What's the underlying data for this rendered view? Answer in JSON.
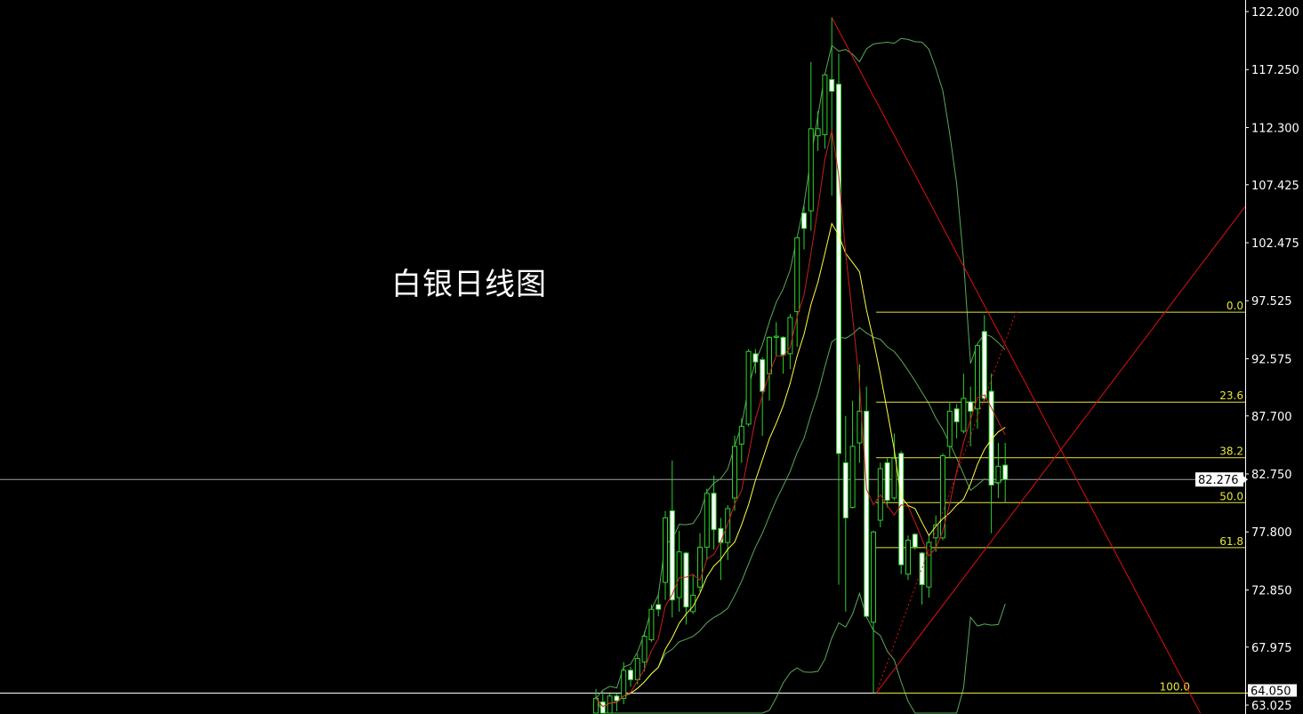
{
  "chart_data": {
    "type": "candlestick",
    "title": "白银日线图",
    "ylim": [
      63.025,
      122.2
    ],
    "y_ticks": [
      "122.200",
      "117.250",
      "112.300",
      "107.425",
      "102.475",
      "97.525",
      "92.575",
      "87.700",
      "82.750",
      "77.800",
      "72.850",
      "67.975",
      "63.025"
    ],
    "grid": false,
    "candles_ohlc": [
      [
        62.2,
        64.4,
        62.0,
        63.6
      ],
      [
        63.3,
        64.2,
        62.0,
        62.2
      ],
      [
        62.2,
        64.0,
        62.0,
        63.8
      ],
      [
        63.8,
        64.0,
        62.5,
        63.4
      ],
      [
        63.6,
        66.7,
        63.1,
        66.0
      ],
      [
        66.0,
        66.3,
        64.6,
        65.2
      ],
      [
        65.2,
        67.4,
        64.8,
        67.0
      ],
      [
        66.7,
        69.3,
        65.9,
        68.9
      ],
      [
        68.6,
        71.6,
        68.4,
        71.2
      ],
      [
        71.6,
        72.5,
        70.6,
        71.2
      ],
      [
        73.5,
        79.6,
        72.0,
        79.0
      ],
      [
        79.6,
        83.9,
        70.5,
        72.0
      ],
      [
        72.2,
        77.9,
        71.0,
        76.1
      ],
      [
        76.0,
        76.1,
        69.9,
        71.4
      ],
      [
        71.0,
        74.2,
        70.8,
        72.4
      ],
      [
        73.1,
        77.7,
        72.7,
        76.5
      ],
      [
        76.5,
        81.5,
        75.4,
        81.1
      ],
      [
        81.1,
        82.6,
        76.3,
        78.0
      ],
      [
        78.1,
        79.0,
        73.7,
        76.9
      ],
      [
        76.9,
        80.1,
        75.4,
        79.8
      ],
      [
        80.7,
        86.0,
        79.6,
        85.1
      ],
      [
        85.3,
        87.5,
        83.7,
        86.8
      ],
      [
        87.0,
        93.4,
        86.8,
        93.2
      ],
      [
        93.0,
        93.4,
        91.3,
        92.3
      ],
      [
        92.5,
        92.7,
        86.0,
        89.8
      ],
      [
        91.3,
        94.5,
        89.0,
        94.4
      ],
      [
        94.4,
        95.7,
        92.8,
        94.5
      ],
      [
        94.4,
        94.5,
        91.3,
        92.9
      ],
      [
        93.0,
        96.4,
        91.7,
        96.1
      ],
      [
        96.6,
        102.9,
        93.6,
        102.9
      ],
      [
        105.0,
        105.6,
        101.9,
        103.7
      ],
      [
        105.2,
        117.9,
        103.5,
        112.2
      ],
      [
        111.6,
        113.7,
        110.3,
        112.2
      ],
      [
        111.7,
        116.9,
        110.5,
        116.8
      ],
      [
        116.4,
        121.7,
        106.5,
        115.4
      ],
      [
        116.0,
        118.6,
        73.3,
        84.5
      ],
      [
        83.7,
        87.7,
        71.0,
        79.0
      ],
      [
        79.9,
        89.0,
        79.8,
        85.1
      ],
      [
        85.4,
        92.1,
        83.7,
        88.1
      ],
      [
        88.1,
        90.2,
        70.5,
        70.6
      ],
      [
        70.1,
        77.9,
        64.05,
        77.8
      ],
      [
        78.8,
        83.7,
        78.2,
        83.2
      ],
      [
        83.7,
        84.1,
        79.9,
        80.5
      ],
      [
        80.7,
        86.2,
        80.5,
        84.1
      ],
      [
        84.5,
        84.7,
        74.2,
        75.0
      ],
      [
        74.2,
        77.5,
        73.7,
        77.1
      ],
      [
        77.6,
        77.7,
        76.3,
        76.5
      ],
      [
        76.0,
        76.1,
        71.6,
        73.3
      ],
      [
        73.1,
        77.5,
        72.2,
        76.9
      ],
      [
        77.3,
        79.2,
        76.1,
        78.4
      ],
      [
        77.3,
        84.5,
        77.1,
        84.3
      ],
      [
        85.1,
        88.9,
        84.1,
        88.1
      ],
      [
        88.3,
        88.7,
        85.8,
        87.2
      ],
      [
        86.4,
        91.3,
        86.2,
        89.2
      ],
      [
        88.9,
        90.2,
        85.1,
        88.1
      ],
      [
        88.3,
        93.8,
        86.6,
        93.7
      ],
      [
        94.9,
        96.3,
        89.0,
        89.2
      ],
      [
        89.8,
        91.3,
        77.7,
        81.8
      ],
      [
        82.0,
        85.4,
        80.7,
        83.4
      ],
      [
        83.5,
        85.4,
        80.3,
        82.276
      ]
    ],
    "current_price": {
      "label": "82.276",
      "value": 82.276
    },
    "low_price": {
      "label": "64.050",
      "value": 64.05
    },
    "fibonacci": {
      "high": 96.55,
      "low": 64.05,
      "start_bar": 40.4,
      "levels": [
        {
          "label": "0.0",
          "ratio": 0.0
        },
        {
          "label": "23.6",
          "ratio": 0.236
        },
        {
          "label": "38.2",
          "ratio": 0.382
        },
        {
          "label": "50.0",
          "ratio": 0.5
        },
        {
          "label": "61.8",
          "ratio": 0.618
        },
        {
          "label": "100.0",
          "ratio": 1.0
        }
      ]
    },
    "trendlines": [
      {
        "style": "solid",
        "from": [
          34,
          121.7
        ],
        "to": [
          87.2,
          62.26
        ]
      },
      {
        "style": "solid",
        "from": [
          40.4,
          64.05
        ],
        "to": [
          93.6,
          105.58
        ]
      },
      {
        "style": "dotted",
        "from": [
          40.4,
          64.05
        ],
        "to": [
          60.6,
          96.63
        ]
      }
    ],
    "colors": {
      "background": "#000000",
      "candle_outline": "#2fd12f",
      "bear_body": "#ffffff",
      "bull_body": "#000000",
      "fast_ma": "#c81e1e",
      "slow_ma": "#ffff40",
      "bands": "#5aa85a",
      "trendline": "#e01010",
      "fibonacci": "#e6e63c",
      "axis": "#ffffff",
      "current_price_line": "#9aa0a8"
    }
  }
}
